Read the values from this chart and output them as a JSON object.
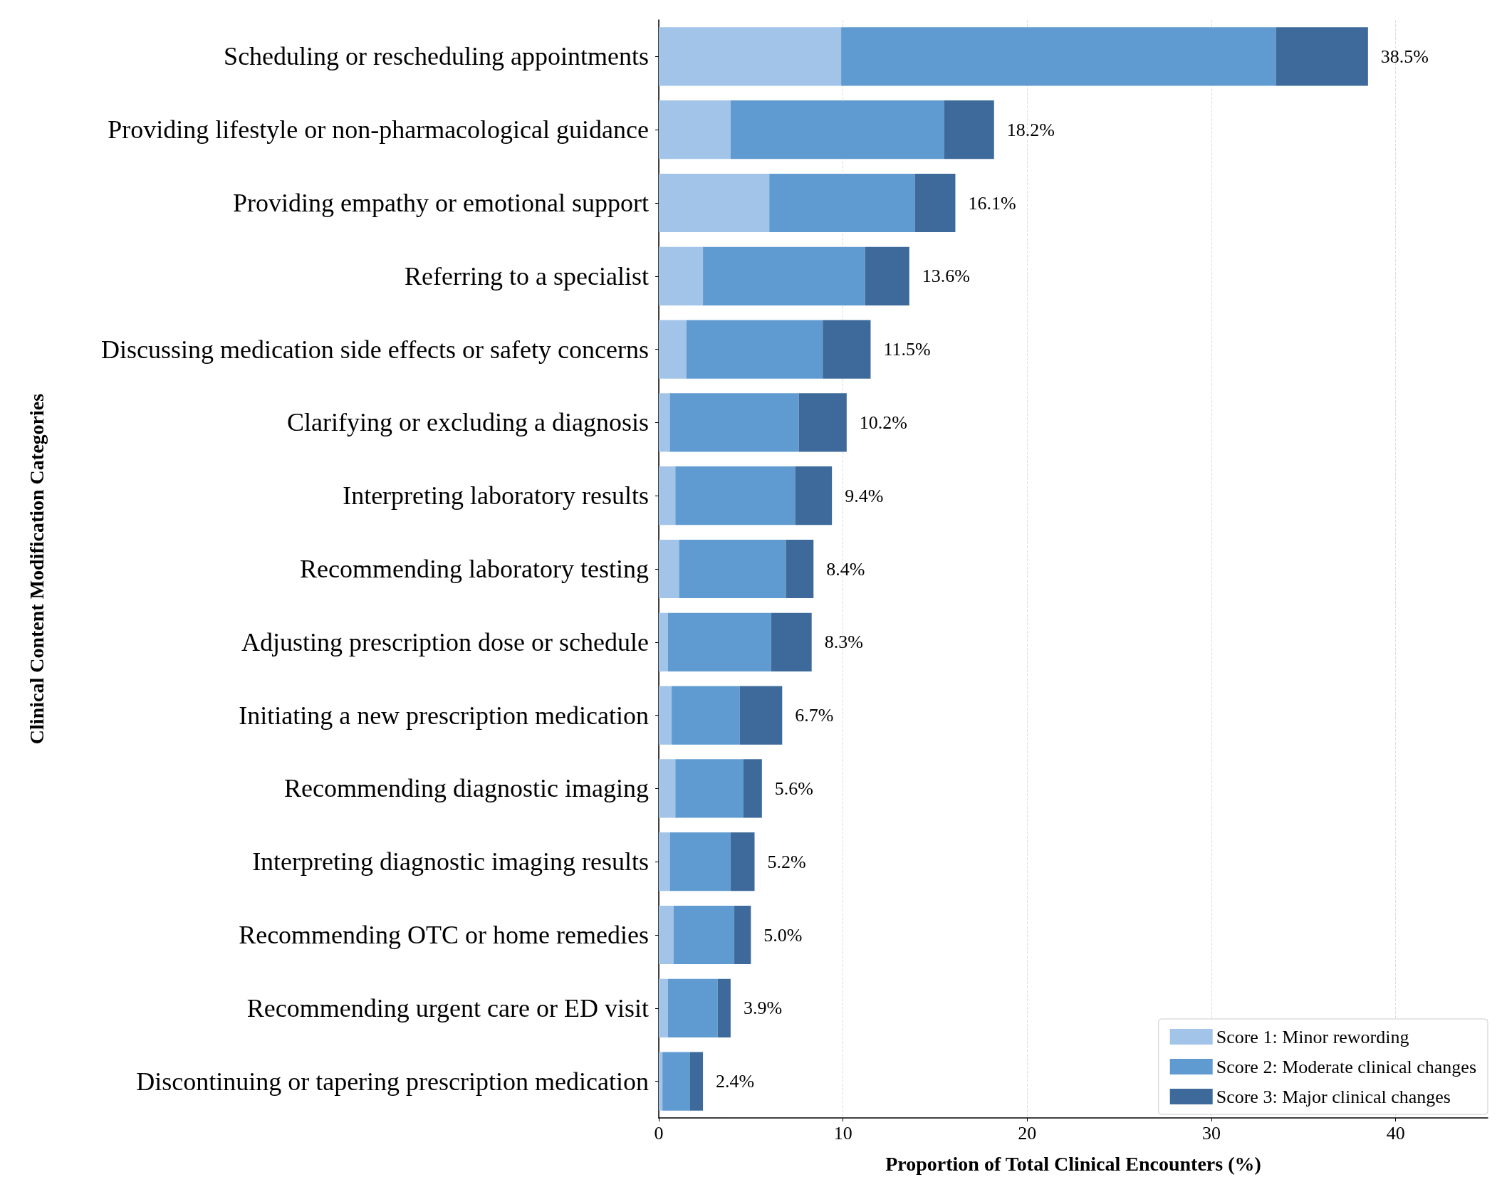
{
  "chart_data": {
    "type": "bar",
    "orientation": "horizontal",
    "stacked": true,
    "xlabel": "Proportion of Total Clinical Encounters (%)",
    "ylabel": "Clinical Content Modification Categories",
    "categories": [
      "Scheduling or rescheduling appointments",
      "Providing lifestyle or non-pharmacological guidance",
      "Providing empathy or emotional support",
      "Referring to a specialist",
      "Discussing medication side effects or safety concerns",
      "Clarifying or excluding a diagnosis",
      "Interpreting laboratory results",
      "Recommending laboratory testing",
      "Adjusting prescription dose or schedule",
      "Initiating a new prescription medication",
      "Recommending diagnostic imaging",
      "Interpreting diagnostic imaging results",
      "Recommending OTC or home remedies",
      "Recommending urgent care or ED visit",
      "Discontinuing or tapering prescription medication"
    ],
    "series": [
      {
        "name": "Score 1: Minor rewording",
        "color": "#a1c4e8",
        "values": [
          9.9,
          3.9,
          6.0,
          2.4,
          1.5,
          0.6,
          0.9,
          1.1,
          0.5,
          0.7,
          0.9,
          0.6,
          0.8,
          0.5,
          0.2
        ]
      },
      {
        "name": "Score 2: Moderate clinical changes",
        "color": "#5f9ad0",
        "values": [
          23.6,
          11.6,
          7.9,
          8.8,
          7.4,
          7.0,
          6.5,
          5.8,
          5.6,
          3.7,
          3.7,
          3.3,
          3.3,
          2.7,
          1.5
        ]
      },
      {
        "name": "Score 3: Major clinical changes",
        "color": "#3d6a9a",
        "values": [
          5.0,
          2.7,
          2.2,
          2.4,
          2.6,
          2.6,
          2.0,
          1.5,
          2.2,
          2.3,
          1.0,
          1.3,
          0.9,
          0.7,
          0.7
        ]
      }
    ],
    "totals": [
      "38.5%",
      "18.2%",
      "16.1%",
      "13.6%",
      "11.5%",
      "10.2%",
      "9.4%",
      "8.4%",
      "8.3%",
      "6.7%",
      "5.6%",
      "5.2%",
      "5.0%",
      "3.9%",
      "2.4%"
    ],
    "xlim": [
      0,
      45
    ],
    "xticks": [
      0,
      10,
      20,
      30,
      40
    ],
    "grid": "x",
    "legend": "bottom right"
  }
}
